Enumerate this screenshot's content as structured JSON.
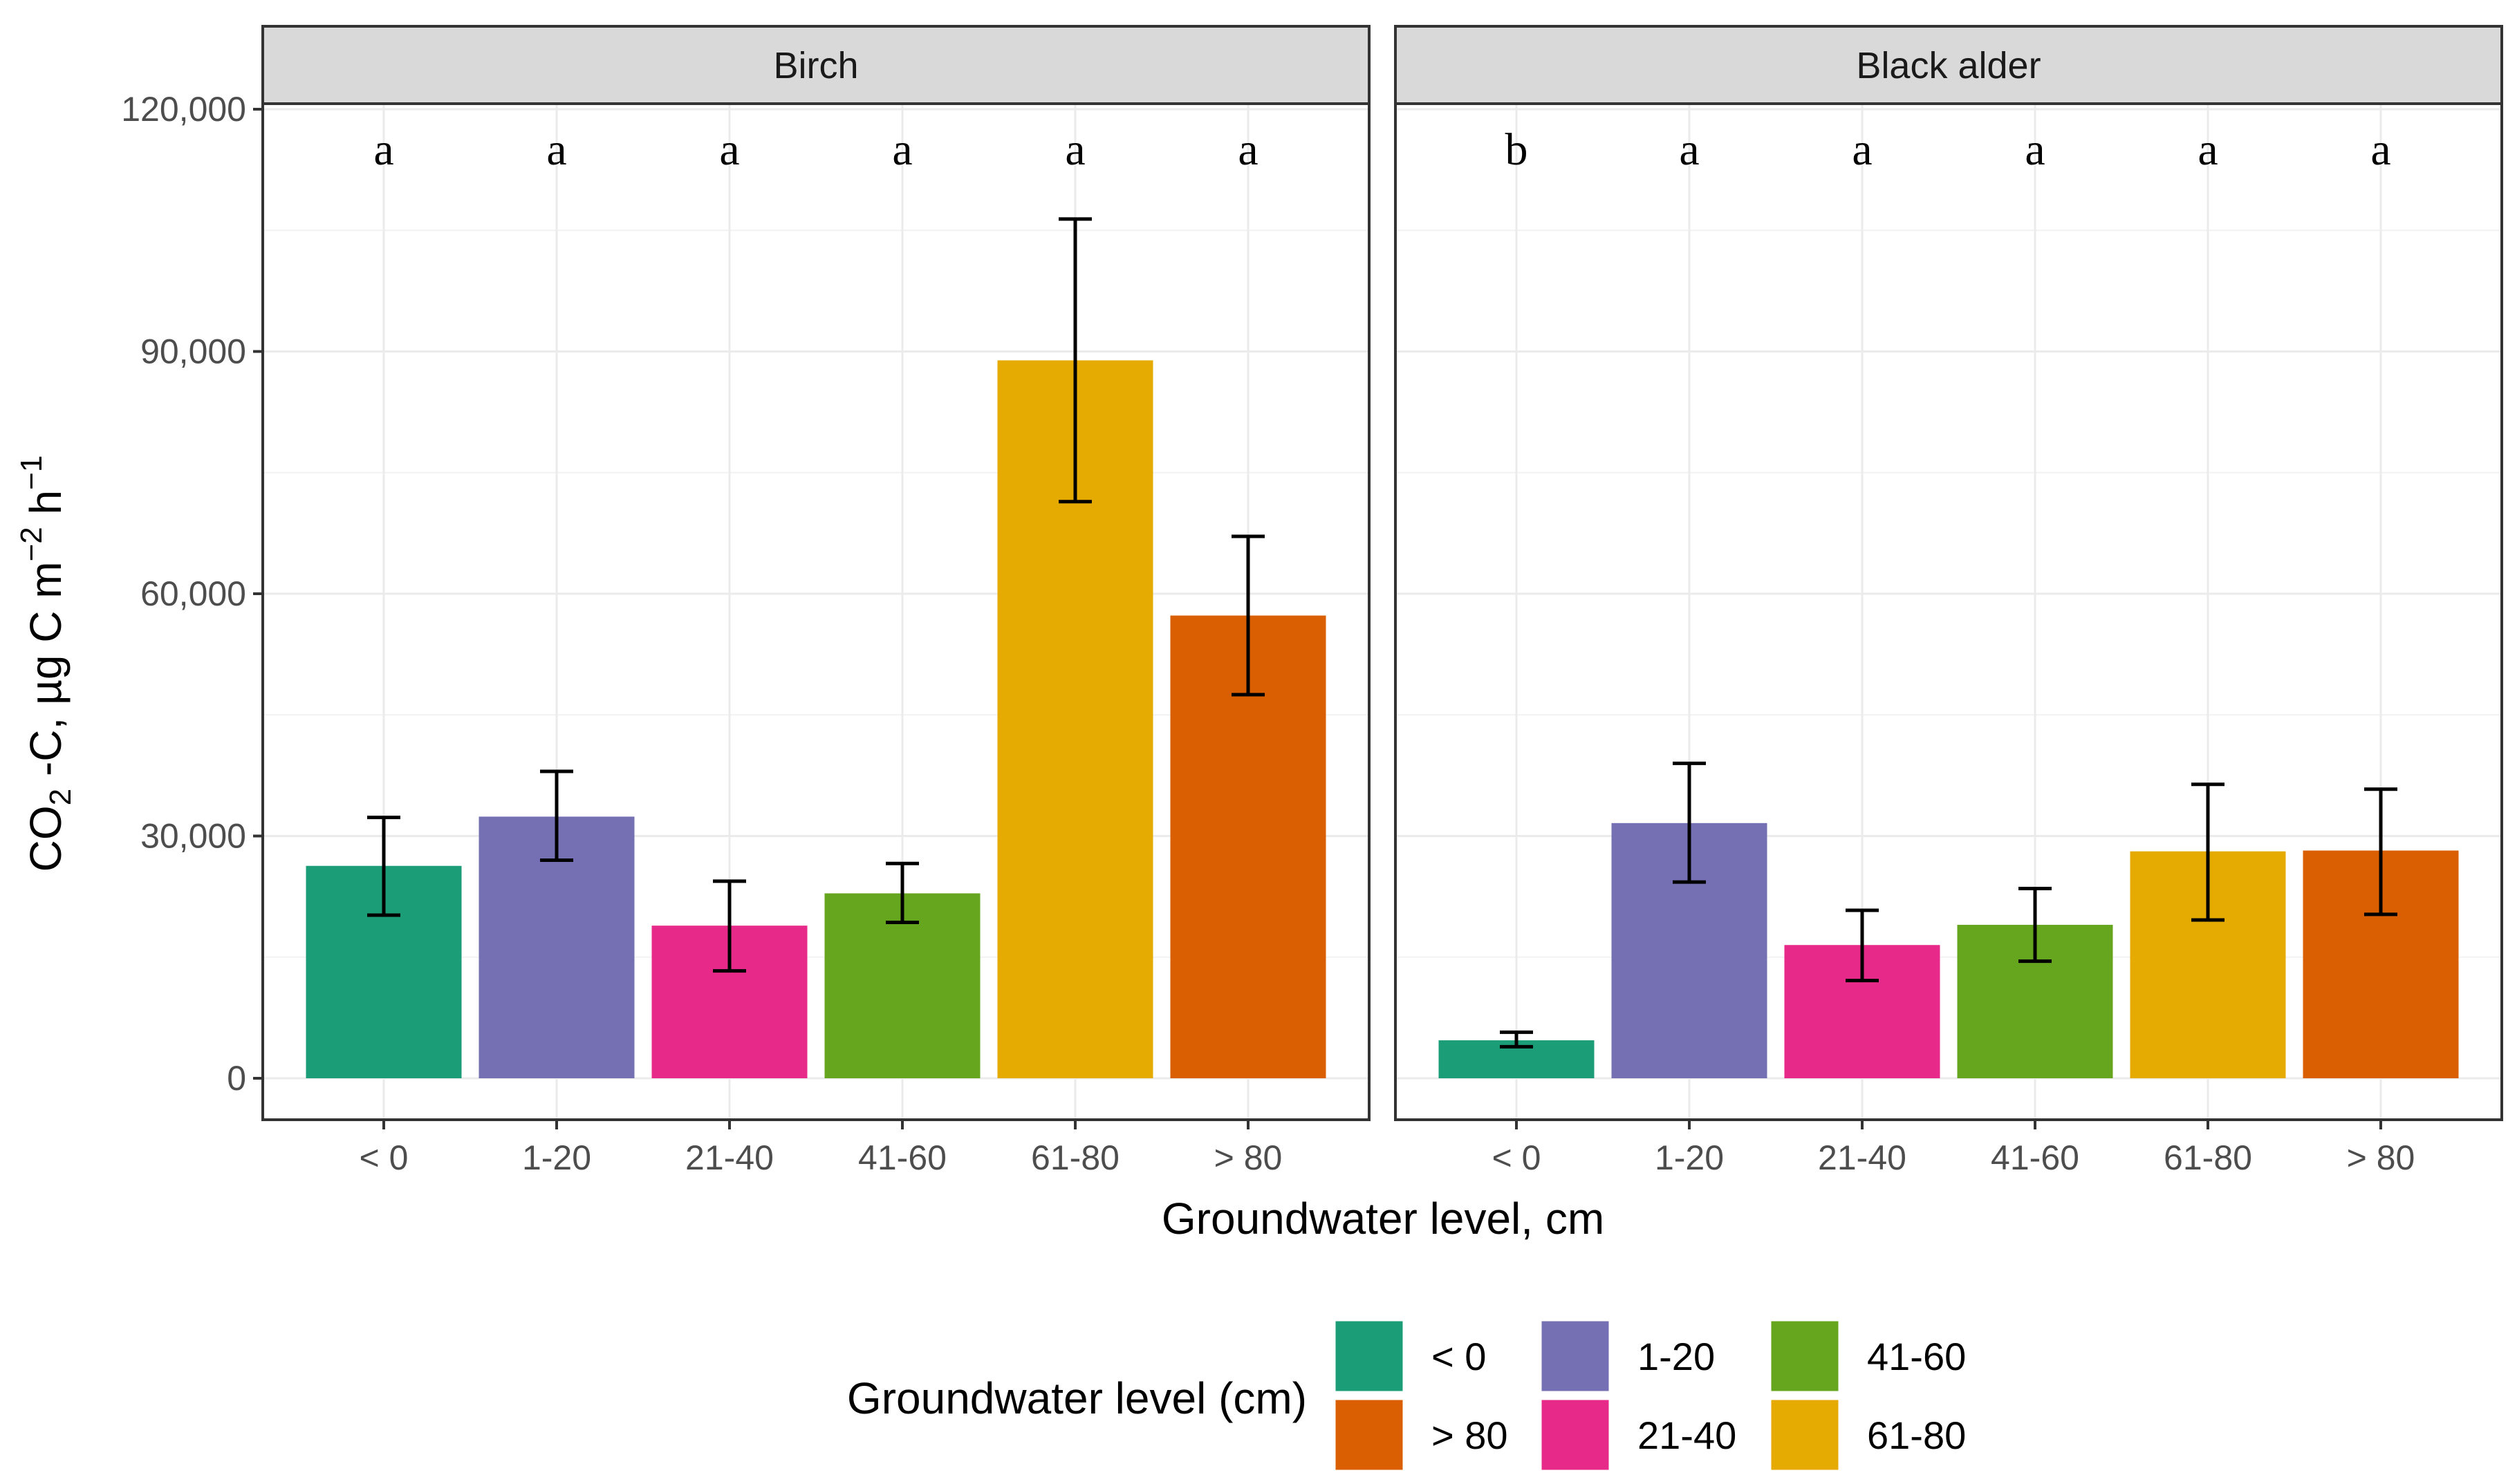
{
  "chart_data": {
    "type": "bar",
    "facets": [
      {
        "title": "Birch",
        "categories": [
          "< 0",
          "1-20",
          "21-40",
          "41-60",
          "61-80",
          "> 80"
        ],
        "values": [
          26300,
          32400,
          18900,
          22900,
          88900,
          57300
        ],
        "error_low": [
          20200,
          27000,
          13300,
          19300,
          71400,
          47500
        ],
        "error_high": [
          32300,
          38000,
          24400,
          26600,
          106400,
          67100
        ],
        "significance": [
          "a",
          "a",
          "a",
          "a",
          "a",
          "a"
        ]
      },
      {
        "title": "Black alder",
        "categories": [
          "< 0",
          "1-20",
          "21-40",
          "41-60",
          "61-80",
          "> 80"
        ],
        "values": [
          4700,
          31600,
          16500,
          19000,
          28100,
          28200
        ],
        "error_low": [
          3900,
          24300,
          12100,
          14500,
          19600,
          20300
        ],
        "error_high": [
          5700,
          39000,
          20800,
          23500,
          36400,
          35800
        ],
        "significance": [
          "b",
          "a",
          "a",
          "a",
          "a",
          "a"
        ]
      }
    ],
    "ylim": [
      0,
      120000
    ],
    "yticks": [
      0,
      30000,
      60000,
      90000,
      120000
    ],
    "ytick_labels": [
      "0",
      "30,000",
      "60,000",
      "90,000",
      "120,000"
    ],
    "xlabel": "Groundwater level, cm",
    "ylabel": "CO2 -C, µg C m−2 h−1",
    "ylabel_parts": {
      "co": "CO",
      "sub2": "2",
      "rest": " -C, µg C m",
      "sup1": "−2",
      "h": " h",
      "sup2": "−1"
    },
    "colors": {
      "< 0": "#1B9E77",
      "1-20": "#7570B3",
      "21-40": "#E7298A",
      "41-60": "#66A61E",
      "61-80": "#E6AB02",
      "> 80": "#D95F02"
    },
    "legend": {
      "title": "Groundwater level (cm)",
      "items": [
        {
          "label": "< 0",
          "color": "#1B9E77"
        },
        {
          "label": "> 80",
          "color": "#D95F02"
        },
        {
          "label": "1-20",
          "color": "#7570B3"
        },
        {
          "label": "21-40",
          "color": "#E7298A"
        },
        {
          "label": "41-60",
          "color": "#66A61E"
        },
        {
          "label": "61-80",
          "color": "#E6AB02"
        }
      ],
      "position": "bottom"
    }
  }
}
